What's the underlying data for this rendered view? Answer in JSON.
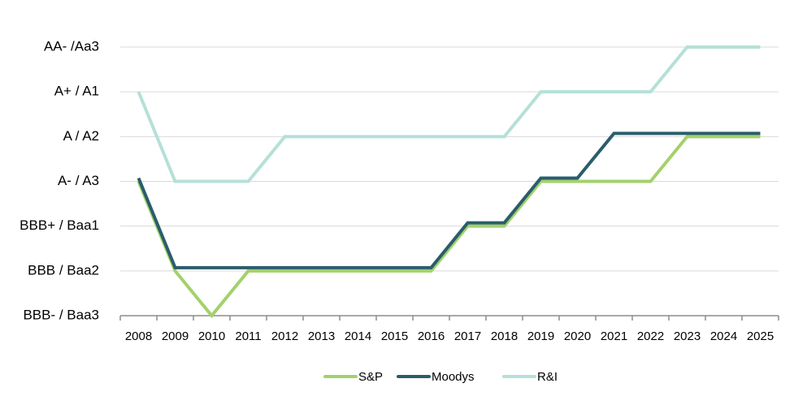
{
  "chart_data": {
    "type": "line",
    "title": "",
    "xlabel": "",
    "ylabel": "",
    "categories": [
      "2008",
      "2009",
      "2010",
      "2011",
      "2012",
      "2013",
      "2014",
      "2015",
      "2016",
      "2017",
      "2018",
      "2019",
      "2020",
      "2021",
      "2022",
      "2023",
      "2024",
      "2025"
    ],
    "y_tick_labels": [
      "BBB- / Baa3",
      "BBB / Baa2",
      "BBB+ / Baa1",
      "A- / A3",
      "A / A2",
      "A+ / A1",
      "AA- /Aa3"
    ],
    "ylim": [
      0,
      6
    ],
    "grid": true,
    "legend_position": "bottom",
    "series": [
      {
        "name": "S&P",
        "color": "#a3d16b",
        "values": [
          3,
          1,
          0,
          1,
          1,
          1,
          1,
          1,
          1,
          2,
          2,
          3,
          3,
          3,
          3,
          4,
          4,
          4
        ]
      },
      {
        "name": "Moodys",
        "color": "#2a5d6b",
        "values": [
          3,
          1,
          1,
          1,
          1,
          1,
          1,
          1,
          1,
          2,
          2,
          3,
          3,
          4,
          4,
          4,
          4,
          4
        ]
      },
      {
        "name": "R&I",
        "color": "#b5e0d8",
        "values": [
          5,
          3,
          3,
          3,
          4,
          4,
          4,
          4,
          4,
          4,
          4,
          5,
          5,
          5,
          5,
          6,
          6,
          6
        ]
      }
    ]
  }
}
